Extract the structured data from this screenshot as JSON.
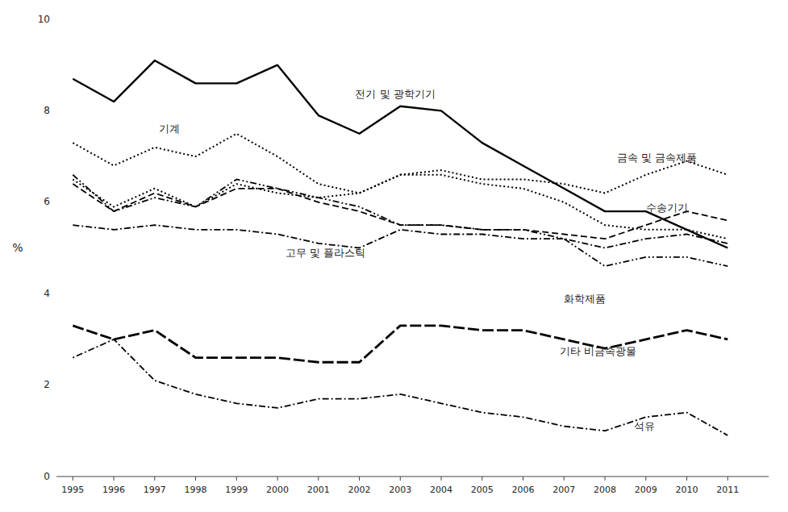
{
  "chart_data": {
    "type": "line",
    "y_label": "%",
    "x": [
      1995,
      1996,
      1997,
      1998,
      1999,
      2000,
      2001,
      2002,
      2003,
      2004,
      2005,
      2006,
      2007,
      2008,
      2009,
      2010,
      2011
    ],
    "series": [
      {
        "name": "전기 및 광학기기",
        "color": "black",
        "line_style": "solid",
        "values": [
          8.7,
          8.2,
          9.1,
          8.6,
          8.6,
          9.0,
          7.9,
          7.5,
          8.1,
          8.0,
          7.3,
          6.8,
          6.3,
          5.8,
          5.8,
          5.4,
          5.0
        ]
      },
      {
        "name": "기계",
        "color": "black",
        "line_style": "dotted",
        "values": [
          7.3,
          6.8,
          7.2,
          7.0,
          7.5,
          7.0,
          6.4,
          6.2,
          6.6,
          6.6,
          6.4,
          6.3,
          6.0,
          5.5,
          5.4,
          5.4,
          5.2
        ]
      },
      {
        "name": "금속 및 금속제품",
        "color": "black",
        "line_style": "dotted",
        "values": [
          6.5,
          5.9,
          6.3,
          5.9,
          6.4,
          6.2,
          6.1,
          6.2,
          6.6,
          6.7,
          6.5,
          6.5,
          6.4,
          6.2,
          6.6,
          6.9,
          6.6
        ]
      },
      {
        "name": "수송기기",
        "color": "black",
        "line_style": "dashed",
        "values": [
          6.4,
          5.8,
          6.2,
          5.9,
          6.3,
          6.3,
          6.0,
          5.8,
          5.5,
          5.5,
          5.4,
          5.4,
          5.3,
          5.2,
          5.5,
          5.8,
          5.6
        ]
      },
      {
        "name": "화학제품",
        "color": "black",
        "line_style": "dashdotdot",
        "values": [
          6.6,
          5.8,
          6.1,
          5.9,
          6.5,
          6.3,
          6.1,
          5.9,
          5.5,
          5.5,
          5.4,
          5.4,
          5.2,
          4.6,
          4.8,
          4.8,
          4.6
        ]
      },
      {
        "name": "고무 및 플라스틱",
        "color": "black",
        "line_style": "dashdot",
        "values": [
          5.5,
          5.4,
          5.5,
          5.4,
          5.4,
          5.3,
          5.1,
          5.0,
          5.4,
          5.3,
          5.3,
          5.2,
          5.2,
          5.0,
          5.2,
          5.3,
          5.1
        ]
      },
      {
        "name": "기타 비금속광물",
        "color": "black",
        "line_style": "longdash",
        "values": [
          3.3,
          3.0,
          3.2,
          2.6,
          2.6,
          2.6,
          2.5,
          2.5,
          3.3,
          3.3,
          3.2,
          3.2,
          3.0,
          2.8,
          3.0,
          3.2,
          3.0
        ]
      },
      {
        "name": "석유",
        "color": "black",
        "line_style": "dotdash",
        "values": [
          2.6,
          3.0,
          2.1,
          1.8,
          1.6,
          1.5,
          1.7,
          1.7,
          1.8,
          1.6,
          1.4,
          1.3,
          1.1,
          1.0,
          1.3,
          1.4,
          0.9
        ]
      }
    ],
    "annotations": [
      {
        "text": "전기 및 광학기기",
        "x": 2001.9,
        "y": 8.35
      },
      {
        "text": "기계",
        "x": 1997.1,
        "y": 7.6
      },
      {
        "text": "금속 및 금속제품",
        "x": 2008.3,
        "y": 6.95
      },
      {
        "text": "수송기기",
        "x": 2009.0,
        "y": 5.87
      },
      {
        "text": "화학제품",
        "x": 2007.0,
        "y": 3.88
      },
      {
        "text": "고무 및 플라스틱",
        "x": 2000.2,
        "y": 4.88
      },
      {
        "text": "기타 비금속광물",
        "x": 2006.9,
        "y": 2.72
      },
      {
        "text": "석유",
        "x": 2008.7,
        "y": 1.08
      }
    ],
    "xlim": [
      1994.6,
      2012.0
    ],
    "xticks": [
      1995,
      1996,
      1997,
      1998,
      1999,
      2000,
      2001,
      2002,
      2003,
      2004,
      2005,
      2006,
      2007,
      2008,
      2009,
      2010,
      2011
    ],
    "ylim": [
      0,
      10
    ],
    "yticks": [
      0,
      2,
      4,
      6,
      8,
      10
    ],
    "grid": false
  }
}
